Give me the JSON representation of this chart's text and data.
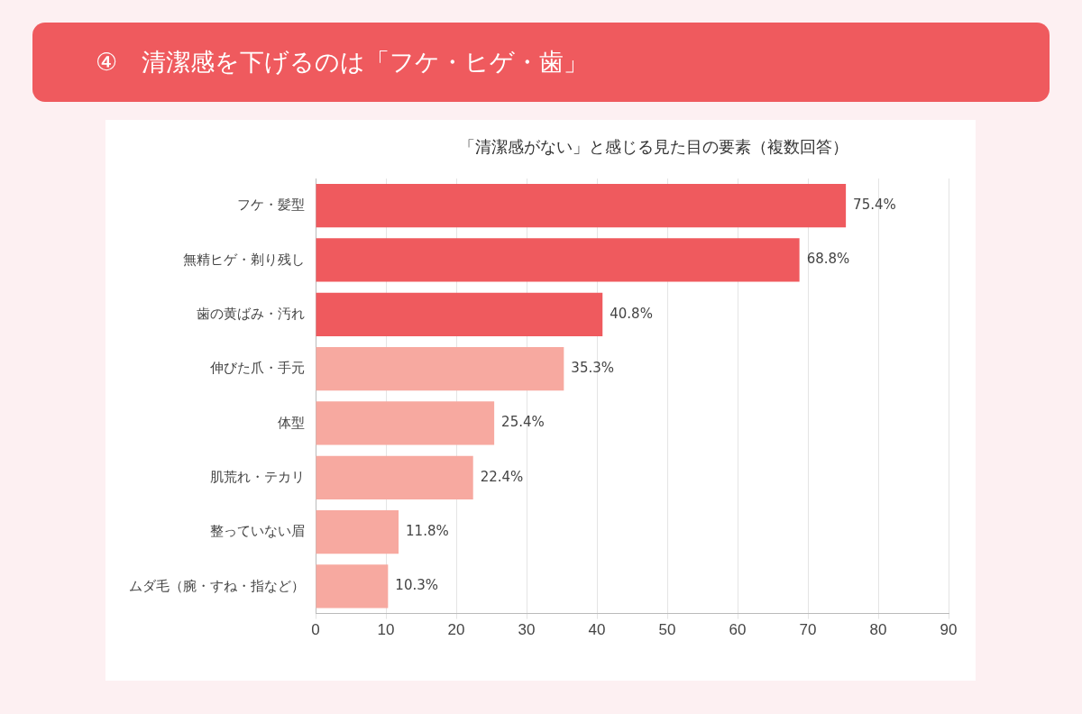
{
  "chart_data": {
    "type": "bar",
    "orientation": "horizontal",
    "title": "④　清潔感を下げるのは「フケ・ヒゲ・歯」",
    "subtitle": "「清潔感がない」と感じる見た目の要素（複数回答）",
    "categories": [
      "フケ・髪型",
      "無精ヒゲ・剃り残し",
      "歯の黄ばみ・汚れ",
      "伸びた爪・手元",
      "体型",
      "肌荒れ・テカリ",
      "整っていない眉",
      "ムダ毛（腕・すね・指など）"
    ],
    "values": [
      75.4,
      68.8,
      40.8,
      35.3,
      25.4,
      22.4,
      11.8,
      10.3
    ],
    "value_labels": [
      "75.4%",
      "68.8%",
      "40.8%",
      "35.3%",
      "25.4%",
      "22.4%",
      "11.8%",
      "10.3%"
    ],
    "colors": [
      "#ef5a5e",
      "#ef5a5e",
      "#ef5a5e",
      "#f7a9a0",
      "#f7a9a0",
      "#f7a9a0",
      "#f7a9a0",
      "#f7a9a0"
    ],
    "xlim": [
      0,
      90
    ],
    "xticks": [
      0,
      10,
      20,
      30,
      40,
      50,
      60,
      70,
      80,
      90
    ],
    "grid": "x",
    "legend": false
  }
}
